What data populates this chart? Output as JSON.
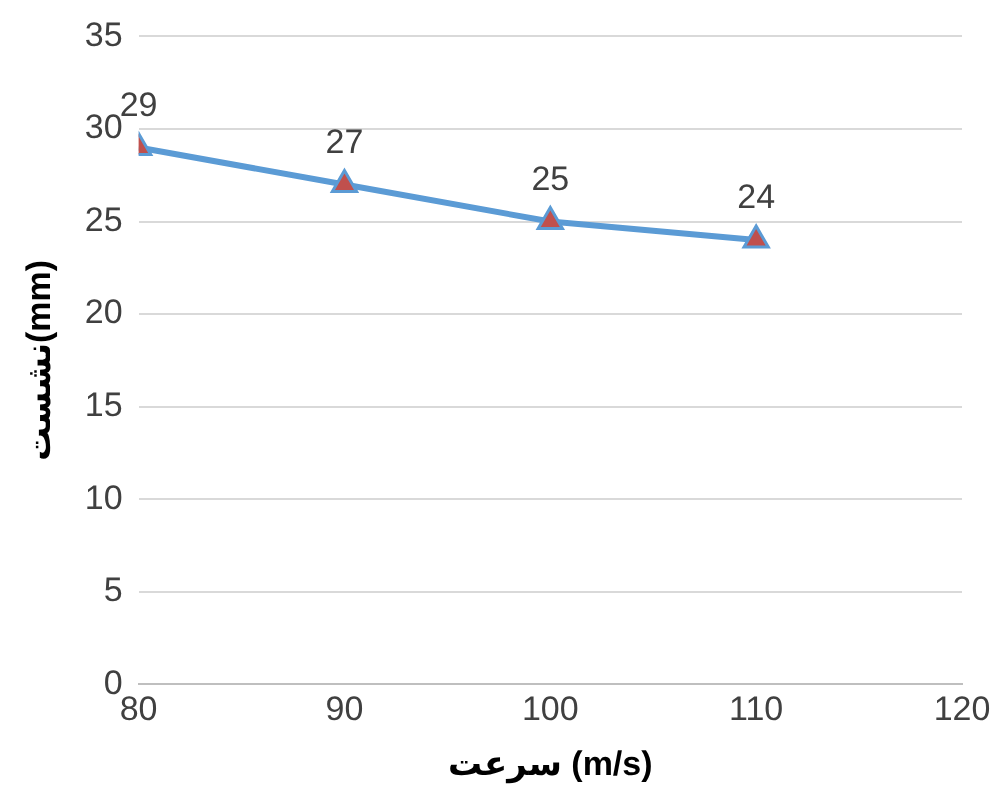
{
  "chart_data": {
    "type": "line",
    "xlabel": "سرعت (m/s)",
    "ylabel": "نشست(mm)",
    "x": [
      80,
      90,
      100,
      110
    ],
    "series": [
      {
        "color": "#5b9bd5",
        "values": [
          29,
          27,
          25,
          24
        ]
      }
    ],
    "xlim": [
      80,
      120
    ],
    "xticks": [
      80,
      90,
      100,
      110,
      120
    ],
    "ylim": [
      0,
      35
    ],
    "yticks": [
      0,
      5,
      10,
      15,
      20,
      25,
      30,
      35
    ],
    "grid": "y",
    "marker": "triangle",
    "data_labels": true,
    "legend": false
  }
}
